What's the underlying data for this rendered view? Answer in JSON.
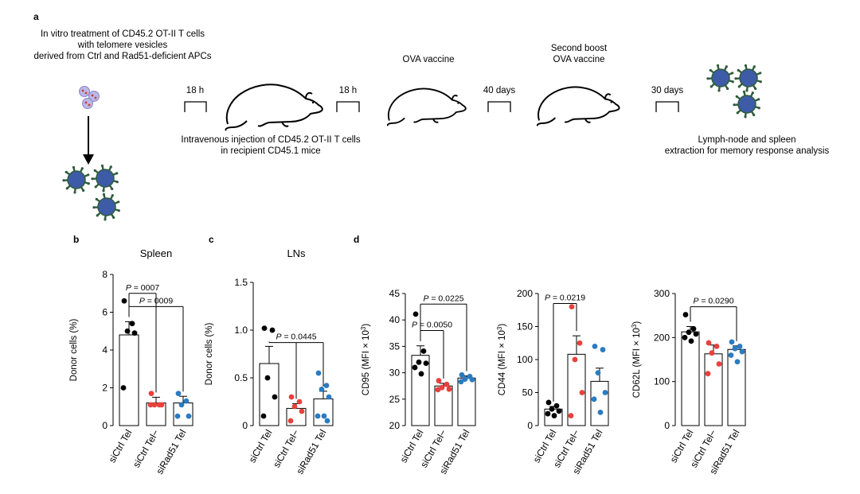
{
  "panel_letters": {
    "a": "a",
    "b": "b",
    "c": "c",
    "d": "d"
  },
  "schematic": {
    "invitro_text": [
      "In vitro treatment of CD45.2 OT-II T cells",
      "with telomere vesicles",
      "derived from Ctrl and Rad51-deficient APCs"
    ],
    "interval_1": "18 h",
    "interval_2": "18 h",
    "injection_text": [
      "Intravenous injection of CD45.2 OT-II T cells",
      "in recipient CD45.1 mice"
    ],
    "vaccine_label": "OVA vaccine",
    "interval_3": "40 days",
    "boost_label": [
      "Second boost",
      "OVA vaccine"
    ],
    "interval_4": "30 days",
    "extraction_text": [
      "Lymph-node and spleen",
      "extraction for memory response analysis"
    ]
  },
  "colors": {
    "ctrl": "#000000",
    "ctrl_minus": "#e8413c",
    "rad51": "#2a7bc0",
    "apc_fill": "#3e5ba8",
    "apc_spike": "#2e5c3c"
  },
  "chart_data": [
    {
      "type": "bar",
      "panel": "b",
      "title": "Spleen",
      "ylabel": "Donor cells (%)",
      "ylim": [
        0,
        8
      ],
      "yticks": [
        "0",
        "2",
        "4",
        "6",
        "8"
      ],
      "categories": [
        "siCtrl Tel",
        "siCtrl Tel−",
        "siRad51 Tel"
      ],
      "means": [
        4.8,
        1.2,
        1.2
      ],
      "sem": [
        0.7,
        0.3,
        0.35
      ],
      "points": [
        [
          6.6,
          5.4,
          5.0,
          4.9,
          2.0
        ],
        [
          1.7,
          1.1,
          1.1,
          1.1,
          1.1
        ],
        [
          1.7,
          1.3,
          1.1,
          0.5,
          0.5
        ]
      ],
      "pvalues": [
        {
          "label": "P = 0007",
          "from": 0,
          "to": 1,
          "y": 7.0
        },
        {
          "label": "P = 0009",
          "from": 0,
          "to": 2,
          "y": 6.3
        }
      ]
    },
    {
      "type": "bar",
      "panel": "c",
      "title": "LNs",
      "ylabel": "Donor cells (%)",
      "ylim": [
        0,
        1.5
      ],
      "yticks": [
        "0",
        "0.5",
        "1.0",
        "1.5"
      ],
      "categories": [
        "siCtrl Tel",
        "siCtrl Tel−",
        "siRad51 Tel"
      ],
      "means": [
        0.65,
        0.18,
        0.28
      ],
      "sem": [
        0.18,
        0.05,
        0.08
      ],
      "points": [
        [
          1.02,
          1.0,
          0.5,
          0.3,
          0.1
        ],
        [
          0.3,
          0.25,
          0.2,
          0.15,
          0.05
        ],
        [
          0.55,
          0.42,
          0.38,
          0.3,
          0.1,
          0.1,
          0.05
        ]
      ],
      "pvalues": [
        {
          "label": "P = 0.0445",
          "from": 0,
          "to": 1,
          "to2": 2,
          "y": 0.87
        }
      ]
    },
    {
      "type": "bar",
      "panel": "d",
      "title": "",
      "ylabel": "CD95 (MFI × 10",
      "ylabel_sup": "3",
      "ylabel_close": ")",
      "ylim": [
        20,
        45
      ],
      "yticks": [
        "20",
        "25",
        "30",
        "35",
        "40",
        "45"
      ],
      "categories": [
        "siCtrl Tel",
        "siCtrl Tel−",
        "siRad51 Tel"
      ],
      "means": [
        33.3,
        27.5,
        29.0
      ],
      "sem": [
        1.8,
        0.5,
        0.4
      ],
      "points": [
        [
          41.1,
          34.1,
          32.0,
          31.8,
          31.0,
          29.8
        ],
        [
          28.5,
          27.8,
          27.2,
          26.9,
          26.8
        ],
        [
          29.6,
          29.3,
          28.8,
          28.7,
          28.3
        ]
      ],
      "pvalues": [
        {
          "label": "P = 0.0225",
          "from": 0,
          "to": 2,
          "y": 43.0
        },
        {
          "label": "P = 0.0050",
          "from": 0,
          "to": 1,
          "y": 38.0
        }
      ]
    },
    {
      "type": "bar",
      "panel": "d2",
      "title": "",
      "ylabel": "CD44 (MFI × 10",
      "ylabel_sup": "3",
      "ylabel_close": ")",
      "ylim": [
        0,
        200
      ],
      "yticks": [
        "0",
        "50",
        "100",
        "150",
        "200"
      ],
      "categories": [
        "siCtrl Tel",
        "siCtrl Tel−",
        "siRad51 Tel"
      ],
      "means": [
        25,
        108,
        67
      ],
      "sem": [
        4,
        28,
        20
      ],
      "points": [
        [
          35,
          30,
          25,
          22,
          18,
          15
        ],
        [
          180,
          125,
          100,
          50,
          15
        ],
        [
          120,
          115,
          80,
          50,
          40,
          20
        ]
      ],
      "pvalues": [
        {
          "label": "P = 0.0219",
          "from": 0,
          "to": 1,
          "y": 185
        }
      ]
    },
    {
      "type": "bar",
      "panel": "d3",
      "title": "",
      "ylabel": "CD62L (MFI × 10",
      "ylabel_sup": "3",
      "ylabel_close": ")",
      "ylim": [
        0,
        300
      ],
      "yticks": [
        "0",
        "100",
        "200",
        "300"
      ],
      "categories": [
        "siCtrl Tel",
        "siCtrl Tel−",
        "siRad51 Tel"
      ],
      "means": [
        213,
        163,
        173
      ],
      "sem": [
        12,
        20,
        8
      ],
      "points": [
        [
          252,
          220,
          212,
          208,
          200,
          192
        ],
        [
          188,
          180,
          165,
          140,
          118
        ],
        [
          190,
          180,
          175,
          168,
          160,
          145
        ]
      ],
      "pvalues": [
        {
          "label": "P = 0.0290",
          "from": 0,
          "to": 2,
          "y": 270
        }
      ]
    }
  ]
}
